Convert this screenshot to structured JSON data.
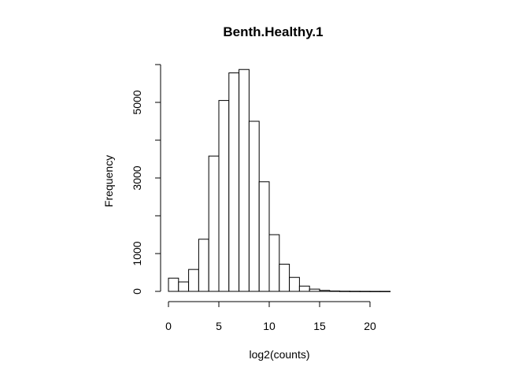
{
  "chart_data": {
    "type": "bar",
    "title": "Benth.Healthy.1",
    "xlabel": "log2(counts)",
    "ylabel": "Frequency",
    "bin_width": 1,
    "bins": [
      {
        "start": 0,
        "end": 1,
        "value": 350
      },
      {
        "start": 1,
        "end": 2,
        "value": 250
      },
      {
        "start": 2,
        "end": 3,
        "value": 580
      },
      {
        "start": 3,
        "end": 4,
        "value": 1380
      },
      {
        "start": 4,
        "end": 5,
        "value": 3580
      },
      {
        "start": 5,
        "end": 6,
        "value": 5050
      },
      {
        "start": 6,
        "end": 7,
        "value": 5780
      },
      {
        "start": 7,
        "end": 8,
        "value": 5870
      },
      {
        "start": 8,
        "end": 9,
        "value": 4500
      },
      {
        "start": 9,
        "end": 10,
        "value": 2900
      },
      {
        "start": 10,
        "end": 11,
        "value": 1500
      },
      {
        "start": 11,
        "end": 12,
        "value": 720
      },
      {
        "start": 12,
        "end": 13,
        "value": 370
      },
      {
        "start": 13,
        "end": 14,
        "value": 140
      },
      {
        "start": 14,
        "end": 15,
        "value": 60
      },
      {
        "start": 15,
        "end": 16,
        "value": 25
      },
      {
        "start": 16,
        "end": 17,
        "value": 10
      },
      {
        "start": 17,
        "end": 18,
        "value": 5
      },
      {
        "start": 18,
        "end": 19,
        "value": 3
      },
      {
        "start": 19,
        "end": 20,
        "value": 2
      },
      {
        "start": 20,
        "end": 21,
        "value": 1
      },
      {
        "start": 21,
        "end": 22,
        "value": 1
      }
    ],
    "x_ticks": [
      {
        "value": 0,
        "label": "0"
      },
      {
        "value": 5,
        "label": "5"
      },
      {
        "value": 10,
        "label": "10"
      },
      {
        "value": 15,
        "label": "15"
      },
      {
        "value": 20,
        "label": "20"
      }
    ],
    "y_ticks": [
      {
        "value": 0,
        "label": "0"
      },
      {
        "value": 1000,
        "label": "1000"
      },
      {
        "value": 2000,
        "label": ""
      },
      {
        "value": 3000,
        "label": "3000"
      },
      {
        "value": 4000,
        "label": ""
      },
      {
        "value": 5000,
        "label": "5000"
      },
      {
        "value": 6000,
        "label": ""
      }
    ],
    "xlim": [
      0,
      22
    ],
    "ylim": [
      0,
      6000
    ],
    "grid": false,
    "legend": "none"
  }
}
